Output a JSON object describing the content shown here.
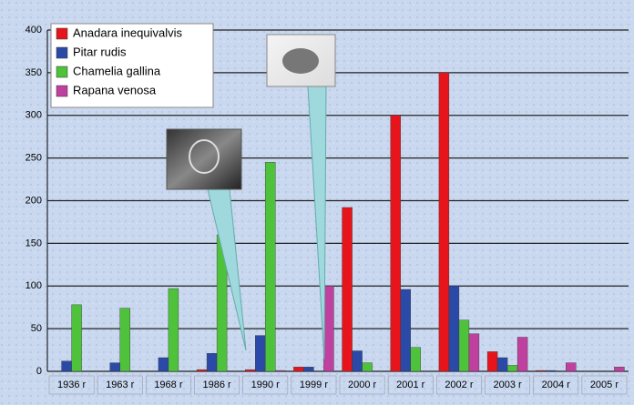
{
  "chart_data": {
    "type": "bar",
    "categories": [
      "1936 r",
      "1963 r",
      "1968 r",
      "1986 r",
      "1990 r",
      "1999 r",
      "2000 r",
      "2001 r",
      "2002 r",
      "2003 r",
      "2004 r",
      "2005 r"
    ],
    "series": [
      {
        "name": "Anadara inequivalvis",
        "color": "#e8141c",
        "values": [
          0,
          0,
          0,
          2,
          2,
          5,
          192,
          300,
          350,
          23,
          1,
          0
        ]
      },
      {
        "name": "Pitar rudis",
        "color": "#2b4aa8",
        "values": [
          12,
          10,
          16,
          21,
          42,
          5,
          24,
          96,
          100,
          16,
          1,
          0
        ]
      },
      {
        "name": "Chamelia gallina",
        "color": "#4fc23c",
        "values": [
          78,
          74,
          97,
          160,
          245,
          0,
          10,
          28,
          60,
          7,
          0,
          0
        ]
      },
      {
        "name": "Rapana venosa",
        "color": "#c040a0",
        "values": [
          0,
          0,
          0,
          0,
          1,
          100,
          0,
          0,
          44,
          40,
          10,
          5
        ]
      }
    ],
    "ylim": [
      0,
      400
    ],
    "yticks": [
      0,
      50,
      100,
      150,
      200,
      250,
      300,
      350,
      400
    ],
    "grid": true
  }
}
